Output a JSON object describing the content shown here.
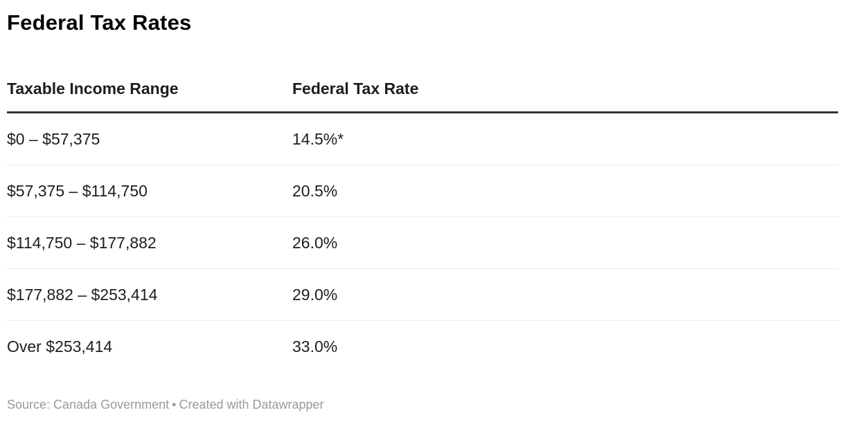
{
  "title": "Federal Tax Rates",
  "table": {
    "columns": {
      "income_range": "Taxable Income Range",
      "tax_rate": "Federal Tax Rate"
    },
    "rows": [
      {
        "income_range": "$0 – $57,375",
        "tax_rate": "14.5%*"
      },
      {
        "income_range": "$57,375 – $114,750",
        "tax_rate": "20.5%"
      },
      {
        "income_range": "$114,750 – $177,882",
        "tax_rate": "26.0%"
      },
      {
        "income_range": "$177,882 – $253,414",
        "tax_rate": "29.0%"
      },
      {
        "income_range": "Over $253,414",
        "tax_rate": "33.0%"
      }
    ]
  },
  "footer": {
    "source": "Source: Canada Government",
    "separator": "•",
    "attribution": "Created with Datawrapper"
  },
  "colors": {
    "title_text": "#000000",
    "body_text": "#1d1d1d",
    "header_border": "#333333",
    "row_separator": "#ebebeb",
    "footer_text": "#999999"
  },
  "chart_data": {
    "type": "table",
    "title": "Federal Tax Rates",
    "columns": [
      "Taxable Income Range",
      "Federal Tax Rate"
    ],
    "rows": [
      [
        "$0 – $57,375",
        "14.5%*"
      ],
      [
        "$57,375 – $114,750",
        "20.5%"
      ],
      [
        "$114,750 – $177,882",
        "26.0%"
      ],
      [
        "$177,882 – $253,414",
        "29.0%"
      ],
      [
        "Over $253,414",
        "33.0%"
      ]
    ],
    "tax_rates_numeric_percent": [
      14.5,
      20.5,
      26.0,
      29.0,
      33.0
    ],
    "footnote_marker": "* on first rate",
    "source": "Source: Canada Government • Created with Datawrapper",
    "legend_position": "none",
    "grid": "horizontal-row-separators"
  }
}
